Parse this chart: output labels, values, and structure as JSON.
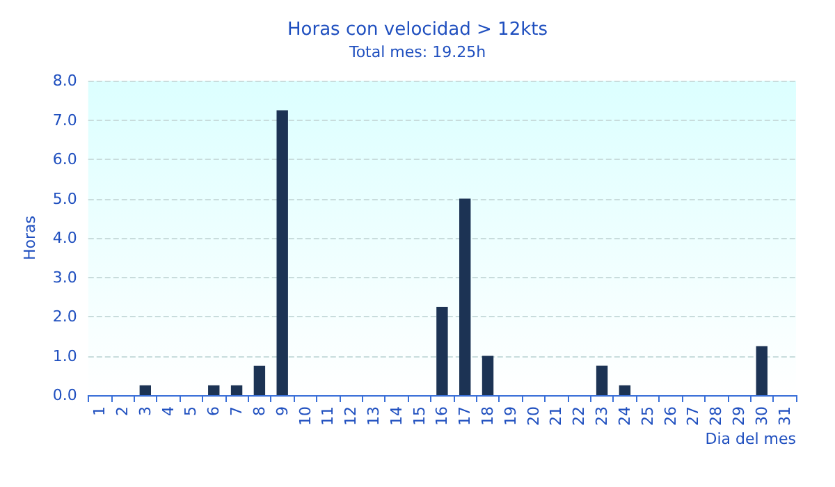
{
  "chart_data": {
    "type": "bar",
    "title": "Horas con velocidad > 12kts",
    "subtitle": "Total mes: 19.25h",
    "xlabel": "Dia del mes",
    "ylabel": "Horas",
    "categories": [
      "1",
      "2",
      "3",
      "4",
      "5",
      "6",
      "7",
      "8",
      "9",
      "10",
      "11",
      "12",
      "13",
      "14",
      "15",
      "16",
      "17",
      "18",
      "19",
      "20",
      "21",
      "22",
      "23",
      "24",
      "25",
      "26",
      "27",
      "28",
      "29",
      "30",
      "31"
    ],
    "values": [
      0,
      0,
      0.25,
      0,
      0,
      0.25,
      0.25,
      0.75,
      7.25,
      0,
      0,
      0,
      0,
      0,
      0,
      2.25,
      5,
      1,
      0,
      0,
      0,
      0,
      0.75,
      0.25,
      0,
      0,
      0,
      0,
      0,
      1.25,
      0
    ],
    "color": "#1c3354",
    "ylim": [
      0,
      8
    ],
    "yticks": [
      {
        "value": 0,
        "label": "0.0"
      },
      {
        "value": 1,
        "label": "1.0"
      },
      {
        "value": 2,
        "label": "2.0"
      },
      {
        "value": 3,
        "label": "3.0"
      },
      {
        "value": 4,
        "label": "4.0"
      },
      {
        "value": 5,
        "label": "5.0"
      },
      {
        "value": 6,
        "label": "6.0"
      },
      {
        "value": 7,
        "label": "7.0"
      },
      {
        "value": 8,
        "label": "8.0"
      }
    ],
    "grid": "y"
  }
}
